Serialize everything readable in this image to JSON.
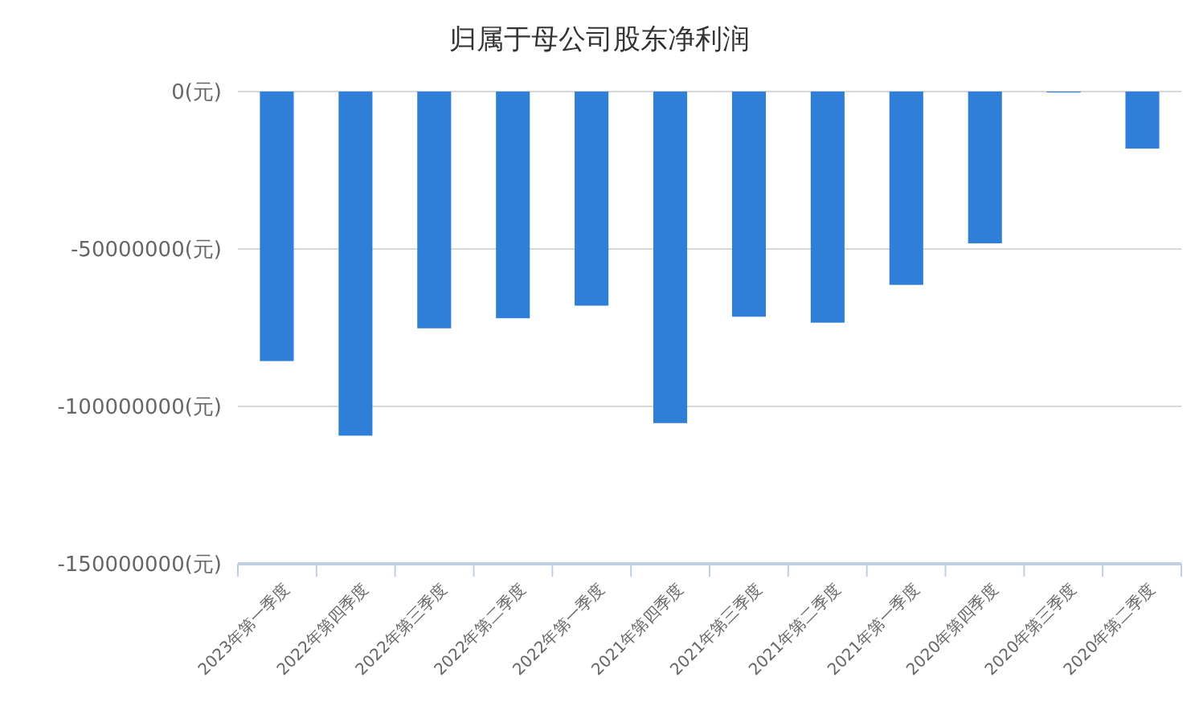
{
  "chart_data": {
    "type": "bar",
    "title": "归属于母公司股东净利润",
    "categories": [
      "2023年第一季度",
      "2022年第四季度",
      "2022年第三季度",
      "2022年第二季度",
      "2022年第一季度",
      "2021年第四季度",
      "2021年第三季度",
      "2021年第二季度",
      "2021年第一季度",
      "2020年第四季度",
      "2020年第三季度",
      "2020年第二季度"
    ],
    "values": [
      -85600000,
      -109300000,
      -75200000,
      -72000000,
      -68000000,
      -105300000,
      -71500000,
      -73400000,
      -61400000,
      -48200000,
      -300000,
      -18100000
    ],
    "color": "#2f7ed8",
    "ylim": [
      -150000000,
      0
    ],
    "yticks": [
      {
        "value": 0,
        "label": "0(元)"
      },
      {
        "value": -50000000,
        "label": "-50000000(元)"
      },
      {
        "value": -100000000,
        "label": "-100000000(元)"
      },
      {
        "value": -150000000,
        "label": "-150000000(元)"
      }
    ],
    "grid": "y"
  }
}
